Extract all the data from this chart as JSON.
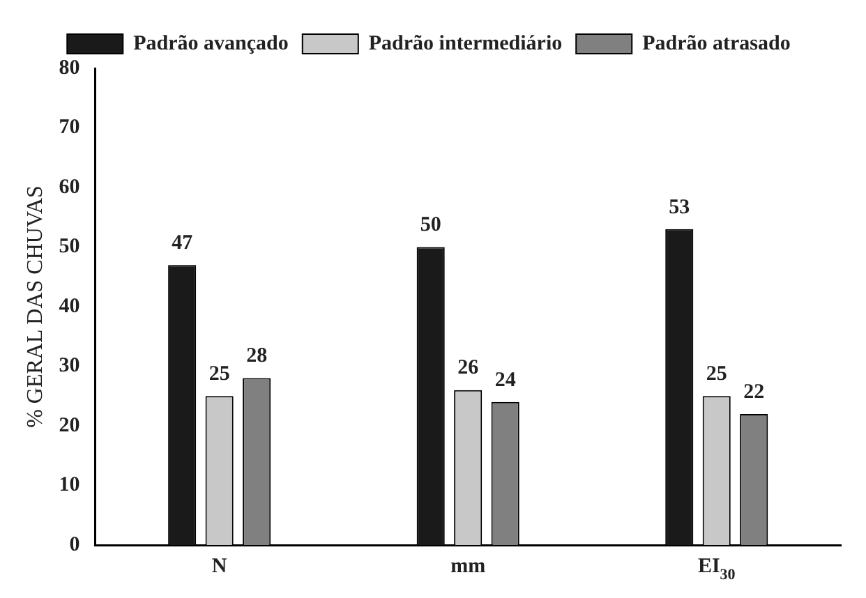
{
  "chart_data": {
    "type": "bar",
    "ylabel": "% GERAL DAS CHUVAS",
    "categories": [
      "N",
      "mm",
      "EI$_{30}$"
    ],
    "series": [
      {
        "name": "Padrão avançado",
        "color": "#1a1a1a",
        "values": [
          47,
          50,
          53
        ]
      },
      {
        "name": "Padrão intermediário",
        "color": "#c8c8c8",
        "values": [
          25,
          26,
          25
        ]
      },
      {
        "name": "Padrão atrasado",
        "color": "#808080",
        "values": [
          28,
          24,
          22
        ]
      }
    ],
    "ylim": [
      0,
      80
    ],
    "yticks": [
      0,
      10,
      20,
      30,
      40,
      50,
      60,
      70,
      80
    ],
    "grid": false,
    "legend": "top",
    "data_labels": true
  }
}
